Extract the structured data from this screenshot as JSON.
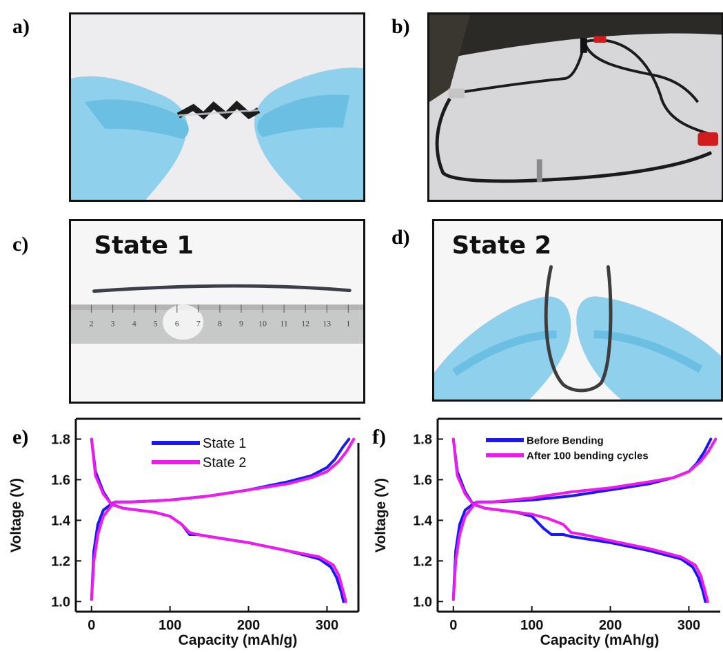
{
  "panel_labels": {
    "a": "a)",
    "b": "b)",
    "c": "c)",
    "d": "d)",
    "e": "e)",
    "f": "f)"
  },
  "photos": {
    "c": {
      "overlay": "State 1",
      "ruler_ticks": [
        "2",
        "3",
        "4",
        "5",
        "6",
        "7",
        "8",
        "9",
        "10",
        "11",
        "12",
        "13",
        "1"
      ]
    },
    "d": {
      "overlay": "State 2"
    }
  },
  "colors": {
    "series_blue": "#1a1aee",
    "series_magenta": "#ee1aee",
    "glove": "#8fd0ec",
    "cable": "#1b1b1b"
  },
  "chart_data": [
    {
      "type": "line",
      "panel": "e",
      "xlabel": "Capacity (mAh/g)",
      "ylabel": "Voltage (V)",
      "xlim": [
        -20,
        340
      ],
      "ylim": [
        0.95,
        1.9
      ],
      "xticks": [
        "0",
        "100",
        "200",
        "300"
      ],
      "xtick_values": [
        0,
        100,
        200,
        300
      ],
      "yticks": [
        "1.0",
        "1.2",
        "1.4",
        "1.6",
        "1.8"
      ],
      "ytick_values": [
        1.0,
        1.2,
        1.4,
        1.6,
        1.8
      ],
      "legend_position": "top-center",
      "series": [
        {
          "name": "State 1",
          "color": "#1a1aee",
          "charge": {
            "x": [
              0,
              3,
              8,
              15,
              25,
              30,
              50,
              100,
              150,
              200,
              250,
              280,
              300,
              310,
              320,
              328
            ],
            "y": [
              1.01,
              1.25,
              1.38,
              1.45,
              1.48,
              1.49,
              1.49,
              1.5,
              1.52,
              1.55,
              1.59,
              1.62,
              1.66,
              1.7,
              1.76,
              1.8
            ]
          },
          "discharge": {
            "x": [
              0,
              5,
              15,
              25,
              40,
              80,
              100,
              115,
              125,
              135,
              150,
              200,
              250,
              290,
              305,
              312,
              318,
              321
            ],
            "y": [
              1.8,
              1.64,
              1.54,
              1.48,
              1.46,
              1.44,
              1.42,
              1.38,
              1.33,
              1.33,
              1.32,
              1.29,
              1.25,
              1.21,
              1.17,
              1.12,
              1.05,
              1.0
            ]
          }
        },
        {
          "name": "State 2",
          "color": "#ee1aee",
          "charge": {
            "x": [
              0,
              3,
              8,
              15,
              25,
              30,
              50,
              100,
              150,
              200,
              250,
              280,
              300,
              315,
              325,
              334
            ],
            "y": [
              1.01,
              1.2,
              1.33,
              1.42,
              1.47,
              1.49,
              1.49,
              1.5,
              1.52,
              1.55,
              1.58,
              1.61,
              1.64,
              1.69,
              1.74,
              1.8
            ]
          },
          "discharge": {
            "x": [
              0,
              5,
              15,
              25,
              40,
              80,
              100,
              115,
              125,
              135,
              150,
              200,
              250,
              290,
              308,
              315,
              320,
              324
            ],
            "y": [
              1.8,
              1.62,
              1.53,
              1.48,
              1.46,
              1.44,
              1.42,
              1.38,
              1.34,
              1.33,
              1.32,
              1.29,
              1.25,
              1.22,
              1.18,
              1.13,
              1.06,
              1.0
            ]
          }
        }
      ]
    },
    {
      "type": "line",
      "panel": "f",
      "xlabel": "Capacity (mAh/g)",
      "ylabel": "Voltage (V)",
      "xlim": [
        -20,
        340
      ],
      "ylim": [
        0.95,
        1.9
      ],
      "xticks": [
        "0",
        "100",
        "200",
        "300"
      ],
      "xtick_values": [
        0,
        100,
        200,
        300
      ],
      "yticks": [
        "1.0",
        "1.2",
        "1.4",
        "1.6",
        "1.8"
      ],
      "ytick_values": [
        1.0,
        1.2,
        1.4,
        1.6,
        1.8
      ],
      "legend_position": "top-center",
      "series": [
        {
          "name": "Before Bending",
          "color": "#1a1aee",
          "charge": {
            "x": [
              0,
              3,
              8,
              15,
              25,
              30,
              50,
              100,
              150,
              200,
              250,
              280,
              300,
              310,
              320,
              328
            ],
            "y": [
              1.01,
              1.25,
              1.38,
              1.45,
              1.48,
              1.49,
              1.49,
              1.5,
              1.52,
              1.55,
              1.58,
              1.61,
              1.64,
              1.68,
              1.74,
              1.8
            ]
          },
          "discharge": {
            "x": [
              0,
              5,
              15,
              25,
              40,
              80,
              100,
              115,
              125,
              140,
              150,
              200,
              250,
              290,
              305,
              312,
              318,
              321
            ],
            "y": [
              1.8,
              1.64,
              1.54,
              1.48,
              1.46,
              1.44,
              1.42,
              1.36,
              1.33,
              1.33,
              1.32,
              1.29,
              1.25,
              1.21,
              1.17,
              1.12,
              1.05,
              1.0
            ]
          }
        },
        {
          "name": "After 100 bending cycles",
          "color": "#ee1aee",
          "charge": {
            "x": [
              0,
              3,
              8,
              15,
              25,
              30,
              50,
              100,
              150,
              200,
              250,
              280,
              300,
              315,
              325,
              334
            ],
            "y": [
              1.01,
              1.2,
              1.33,
              1.42,
              1.47,
              1.49,
              1.49,
              1.51,
              1.54,
              1.56,
              1.59,
              1.61,
              1.64,
              1.69,
              1.74,
              1.8
            ]
          },
          "discharge": {
            "x": [
              0,
              5,
              15,
              25,
              40,
              80,
              100,
              120,
              140,
              150,
              165,
              200,
              250,
              290,
              308,
              315,
              320,
              324
            ],
            "y": [
              1.8,
              1.62,
              1.53,
              1.48,
              1.46,
              1.44,
              1.43,
              1.41,
              1.38,
              1.34,
              1.33,
              1.3,
              1.26,
              1.22,
              1.18,
              1.13,
              1.06,
              1.0
            ]
          }
        }
      ]
    }
  ]
}
